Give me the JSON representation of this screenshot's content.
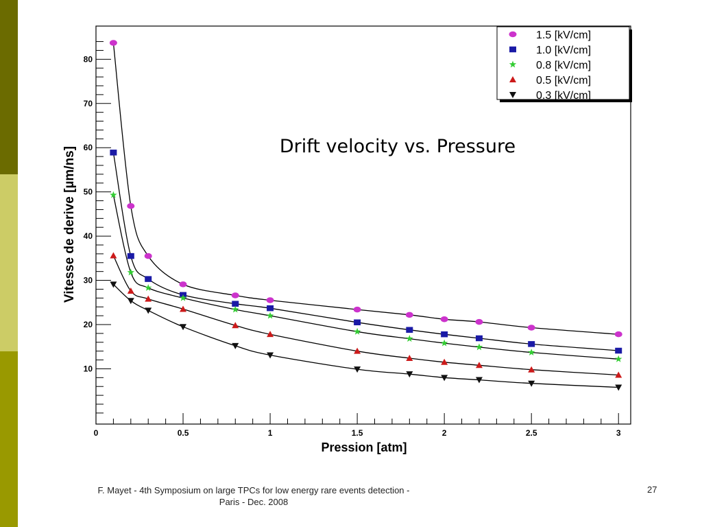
{
  "slide": {
    "footer_line1": "F. Mayet  - 4th Symposium on large TPCs  for low energy rare events detection -",
    "footer_line2": "Paris - Dec. 2008",
    "number": "27",
    "sidebar_colors": [
      "#6b6b00",
      "#cccc66",
      "#999900"
    ]
  },
  "chart_data": {
    "type": "scatter",
    "title": "Drift velocity  vs. Pressure",
    "xlabel": "Pression [atm]",
    "ylabel": "Vitesse de derive [µm/ns]",
    "xlim": [
      0,
      3.07
    ],
    "ylim": [
      -2.5,
      87.5
    ],
    "x_ticks": [
      0,
      0.5,
      1,
      1.5,
      2,
      2.5,
      3
    ],
    "x_tick_labels": [
      "0",
      "0.5",
      "1",
      "1.5",
      "2",
      "2.5",
      "3"
    ],
    "y_ticks": [
      10,
      20,
      30,
      40,
      50,
      60,
      70,
      80
    ],
    "y_tick_labels": [
      "10",
      "20",
      "30",
      "40",
      "50",
      "60",
      "70",
      "80"
    ],
    "grid": false,
    "legend_position": "top-right",
    "x": [
      0.1,
      0.2,
      0.3,
      0.5,
      0.8,
      1.0,
      1.5,
      1.8,
      2.0,
      2.2,
      2.5,
      3.0
    ],
    "series": [
      {
        "name": "1.5  [kV/cm]",
        "marker": "circle",
        "color": "#cc33cc",
        "values": [
          83.7,
          46.8,
          35.5,
          29.1,
          26.6,
          25.5,
          23.4,
          22.2,
          21.2,
          20.6,
          19.3,
          17.8
        ]
      },
      {
        "name": "1.0  [kV/cm]",
        "marker": "square",
        "color": "#1a1aa6",
        "values": [
          58.9,
          35.5,
          30.3,
          26.7,
          24.7,
          23.7,
          20.5,
          18.8,
          17.8,
          16.9,
          15.6,
          14.1
        ]
      },
      {
        "name": "0.8  [kV/cm]",
        "marker": "star",
        "color": "#33cc33",
        "values": [
          49.3,
          31.8,
          28.3,
          26.0,
          23.4,
          22.0,
          18.4,
          16.8,
          15.8,
          14.9,
          13.7,
          12.2
        ]
      },
      {
        "name": "0.5  [kV/cm]",
        "marker": "triangle-up",
        "color": "#cc1a1a",
        "values": [
          35.6,
          27.6,
          25.8,
          23.5,
          19.8,
          17.8,
          14.0,
          12.4,
          11.5,
          10.8,
          9.8,
          8.6
        ]
      },
      {
        "name": "0.3  [kV/cm]",
        "marker": "triangle-down",
        "color": "#111111",
        "values": [
          29.1,
          25.4,
          23.2,
          19.5,
          15.2,
          13.1,
          9.9,
          8.8,
          8.0,
          7.5,
          6.7,
          5.8
        ]
      }
    ]
  }
}
